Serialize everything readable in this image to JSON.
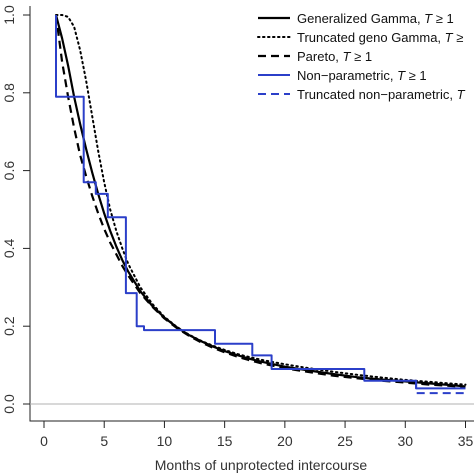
{
  "chart_data": {
    "type": "line",
    "title": "",
    "xlabel": "Months of unprotected intercourse",
    "ylabel": "",
    "xlim": [
      0,
      35
    ],
    "ylim": [
      0,
      1.0
    ],
    "x_ticks": [
      0,
      5,
      10,
      15,
      20,
      25,
      30,
      35
    ],
    "x_tick_labels": [
      "0",
      "5",
      "10",
      "15",
      "20",
      "25",
      "30",
      "35"
    ],
    "y_ticks": [
      0.0,
      0.2,
      0.4,
      0.6,
      0.8,
      1.0
    ],
    "y_tick_labels": [
      "0.0",
      "0.2",
      "0.4",
      "0.6",
      "0.8",
      "1.0"
    ],
    "reference_line_y": 0,
    "legend_position": "top-right",
    "series": [
      {
        "name": "Generalized Gamma, T ≥ 1",
        "legend_prefix": "Generalized Gamma, ",
        "legend_var": "T",
        "legend_suffix": " ≥ 1",
        "style": "solid",
        "color": "#000000",
        "x": [
          1,
          1.5,
          2,
          2.5,
          3,
          3.5,
          4,
          4.5,
          5,
          5.5,
          6,
          6.5,
          7,
          8,
          9,
          10,
          11,
          12,
          13,
          14,
          15,
          16,
          17,
          18,
          20,
          22,
          24,
          26,
          28,
          30,
          32,
          34,
          35
        ],
        "y": [
          1.0,
          0.94,
          0.87,
          0.79,
          0.72,
          0.655,
          0.595,
          0.54,
          0.49,
          0.445,
          0.405,
          0.37,
          0.34,
          0.29,
          0.252,
          0.222,
          0.198,
          0.178,
          0.162,
          0.148,
          0.136,
          0.126,
          0.117,
          0.109,
          0.096,
          0.086,
          0.077,
          0.069,
          0.063,
          0.058,
          0.053,
          0.048,
          0.045
        ]
      },
      {
        "name": "Truncated geno Gamma, T ≥",
        "legend_prefix": "Truncated geno Gamma, ",
        "legend_var": "T",
        "legend_suffix": " ≥",
        "style": "dotted",
        "color": "#000000",
        "x": [
          1,
          1.5,
          2,
          2.5,
          3,
          3.5,
          4,
          4.5,
          5,
          5.5,
          6,
          6.5,
          7,
          8,
          9,
          10,
          11,
          12,
          13,
          14,
          15,
          16,
          17,
          18,
          20,
          22,
          24,
          26,
          28,
          30,
          32,
          34,
          35
        ],
        "y": [
          1.0,
          1.0,
          0.995,
          0.97,
          0.91,
          0.83,
          0.74,
          0.65,
          0.57,
          0.5,
          0.445,
          0.4,
          0.36,
          0.3,
          0.257,
          0.224,
          0.199,
          0.179,
          0.163,
          0.15,
          0.139,
          0.129,
          0.121,
          0.114,
          0.102,
          0.092,
          0.083,
          0.075,
          0.068,
          0.062,
          0.057,
          0.052,
          0.05
        ]
      },
      {
        "name": "Pareto, T ≥ 1",
        "legend_prefix": "Pareto, ",
        "legend_var": "T",
        "legend_suffix": " ≥ 1",
        "style": "dashed",
        "color": "#000000",
        "x": [
          1,
          1.5,
          2,
          2.5,
          3,
          3.5,
          4,
          4.5,
          5,
          5.5,
          6,
          6.5,
          7,
          8,
          9,
          10,
          11,
          12,
          13,
          14,
          15,
          16,
          17,
          18,
          20,
          22,
          24,
          26,
          28,
          30,
          32,
          34,
          35
        ],
        "y": [
          1.0,
          0.88,
          0.79,
          0.71,
          0.64,
          0.585,
          0.535,
          0.49,
          0.45,
          0.415,
          0.385,
          0.355,
          0.33,
          0.285,
          0.25,
          0.22,
          0.196,
          0.176,
          0.159,
          0.145,
          0.133,
          0.122,
          0.113,
          0.105,
          0.092,
          0.082,
          0.073,
          0.066,
          0.06,
          0.055,
          0.05,
          0.046,
          0.044
        ]
      },
      {
        "name": "Non−parametric, T ≥ 1",
        "legend_prefix": "Non−parametric, ",
        "legend_var": "T",
        "legend_suffix": " ≥ 1",
        "style": "step-solid",
        "color": "#2b3fc9",
        "x": [
          1,
          1,
          3.3,
          3.3,
          4.3,
          4.3,
          5.3,
          5.3,
          6.8,
          6.8,
          7.7,
          7.7,
          8.3,
          8.3,
          14.2,
          14.2,
          17.3,
          17.3,
          18.9,
          18.9,
          26.6,
          26.6,
          30.9,
          30.9,
          35
        ],
        "y": [
          1.0,
          0.79,
          0.79,
          0.57,
          0.57,
          0.54,
          0.54,
          0.48,
          0.48,
          0.285,
          0.285,
          0.2,
          0.2,
          0.19,
          0.19,
          0.155,
          0.155,
          0.125,
          0.125,
          0.09,
          0.09,
          0.06,
          0.06,
          0.04,
          0.04
        ]
      },
      {
        "name": "Truncated non−parametric, T",
        "legend_prefix": "Truncated non−parametric, ",
        "legend_var": "T",
        "legend_suffix": "",
        "style": "step-dashed",
        "color": "#2b3fc9",
        "x": [
          30.9,
          30.9,
          35
        ],
        "y": [
          0.06,
          0.028,
          0.028
        ]
      }
    ]
  }
}
